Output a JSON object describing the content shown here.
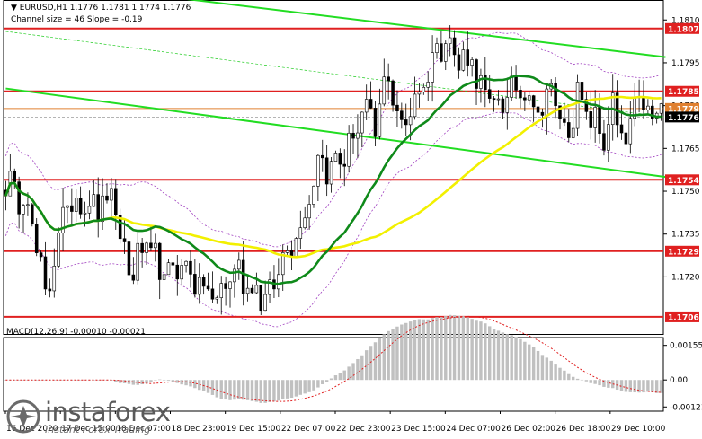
{
  "header": {
    "symbol_line": "▼ EURUSD,H1  1.1776 1.1781 1.1774 1.1776",
    "channel_line": "Channel size = 46 Slope = -0.19"
  },
  "macd": {
    "label": "MACD(12,26,9) -0.00010 -0.00021"
  },
  "logo": {
    "word": "instaforex",
    "tagline": "Instant Forex Trading"
  },
  "chart_data": {
    "type": "candlestick",
    "symbol": "EURUSD",
    "timeframe": "H1",
    "price_axis": {
      "ticks": [
        "1.1810",
        "1.1795",
        "1.1780",
        "1.1765",
        "1.1750",
        "1.1735",
        "1.1720"
      ],
      "tick_values": [
        1.181,
        1.1795,
        1.178,
        1.1765,
        1.175,
        1.1735,
        1.172
      ],
      "range": [
        1.17,
        1.1817
      ]
    },
    "levels": [
      {
        "label": "1.1807",
        "value": 1.1807,
        "color": "#e02020",
        "style": "solid"
      },
      {
        "label": "1.1785",
        "value": 1.1785,
        "color": "#e02020",
        "style": "solid"
      },
      {
        "label": "1.1779",
        "value": 1.1779,
        "color": "#e08030",
        "style": "solid"
      },
      {
        "label": "1.1776",
        "value": 1.1776,
        "color": "#000000",
        "style": "current"
      },
      {
        "label": "1.1754",
        "value": 1.1754,
        "color": "#e02020",
        "style": "solid"
      },
      {
        "label": "1.1729",
        "value": 1.1729,
        "color": "#e02020",
        "style": "solid"
      },
      {
        "label": "1.1706",
        "value": 1.1706,
        "color": "#e02020",
        "style": "solid"
      }
    ],
    "time_labels": [
      "16 Dec 2020",
      "17 Dec 15:00",
      "18 Dec 07:00",
      "18 Dec 23:00",
      "19 Dec 15:00",
      "22 Dec 07:00",
      "22 Dec 23:00",
      "23 Dec 15:00",
      "24 Dec 07:00",
      "26 Dec 02:00",
      "26 Dec 18:00",
      "29 Dec 10:00"
    ],
    "macd_axis": {
      "ticks": [
        "0.00155",
        "0.00",
        "-0.00121"
      ],
      "tick_values": [
        0.00155,
        0.0,
        -0.00121
      ],
      "range": [
        -0.0014,
        0.0019
      ]
    },
    "channel": {
      "upper": [
        [
          0,
          1.1825
        ],
        [
          150,
          1.1797
        ]
      ],
      "lower": [
        [
          0,
          1.1786
        ],
        [
          150,
          1.1755
        ]
      ],
      "mid": [
        [
          0,
          1.1806
        ],
        [
          150,
          1.1776
        ]
      ]
    },
    "seed_path": [
      [
        0,
        1.1752
      ],
      [
        5,
        1.1747
      ],
      [
        9,
        1.1712
      ],
      [
        13,
        1.1742
      ],
      [
        17,
        1.1748
      ],
      [
        20,
        1.1744
      ],
      [
        24,
        1.1747
      ],
      [
        28,
        1.1722
      ],
      [
        32,
        1.173
      ],
      [
        36,
        1.172
      ],
      [
        40,
        1.1725
      ],
      [
        44,
        1.1717
      ],
      [
        48,
        1.1712
      ],
      [
        52,
        1.1723
      ],
      [
        56,
        1.1716
      ],
      [
        60,
        1.1712
      ],
      [
        63,
        1.1728
      ],
      [
        65,
        1.1732
      ],
      [
        68,
        1.1742
      ],
      [
        71,
        1.1762
      ],
      [
        74,
        1.1758
      ],
      [
        78,
        1.1765
      ],
      [
        81,
        1.1778
      ],
      [
        84,
        1.1772
      ],
      [
        87,
        1.1792
      ],
      [
        90,
        1.177
      ],
      [
        92,
        1.178
      ],
      [
        95,
        1.1788
      ],
      [
        98,
        1.18
      ],
      [
        100,
        1.1805
      ],
      [
        103,
        1.1795
      ],
      [
        106,
        1.1797
      ],
      [
        108,
        1.1785
      ],
      [
        111,
        1.178
      ],
      [
        115,
        1.1784
      ],
      [
        118,
        1.1787
      ],
      [
        121,
        1.1778
      ],
      [
        124,
        1.1786
      ],
      [
        127,
        1.177
      ],
      [
        130,
        1.1782
      ],
      [
        133,
        1.1775
      ],
      [
        136,
        1.1769
      ],
      [
        138,
        1.1779
      ],
      [
        141,
        1.1764
      ],
      [
        143,
        1.1782
      ],
      [
        145,
        1.1778
      ],
      [
        149,
        1.1776
      ]
    ]
  }
}
